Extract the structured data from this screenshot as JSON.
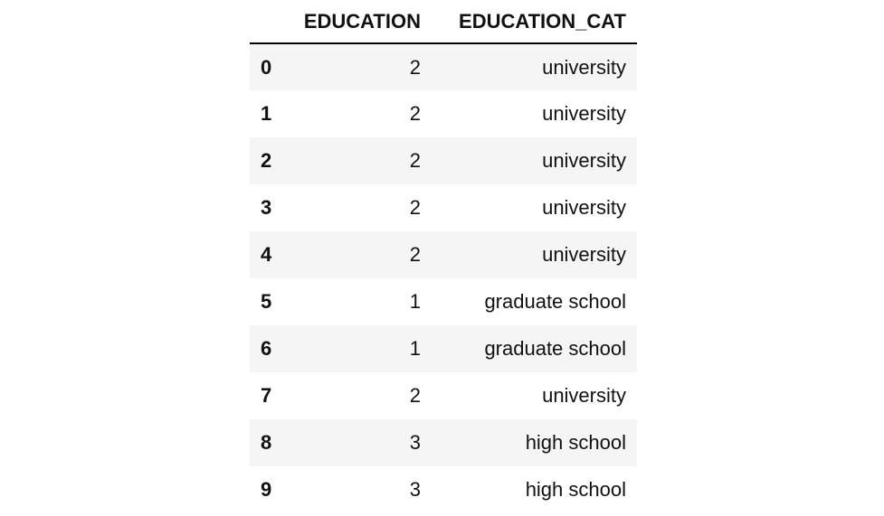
{
  "table": {
    "columns": [
      "EDUCATION",
      "EDUCATION_CAT"
    ],
    "rows": [
      {
        "index": "0",
        "education": "2",
        "education_cat": "university"
      },
      {
        "index": "1",
        "education": "2",
        "education_cat": "university"
      },
      {
        "index": "2",
        "education": "2",
        "education_cat": "university"
      },
      {
        "index": "3",
        "education": "2",
        "education_cat": "university"
      },
      {
        "index": "4",
        "education": "2",
        "education_cat": "university"
      },
      {
        "index": "5",
        "education": "1",
        "education_cat": "graduate school"
      },
      {
        "index": "6",
        "education": "1",
        "education_cat": "graduate school"
      },
      {
        "index": "7",
        "education": "2",
        "education_cat": "university"
      },
      {
        "index": "8",
        "education": "3",
        "education_cat": "high school"
      },
      {
        "index": "9",
        "education": "3",
        "education_cat": "high school"
      }
    ]
  }
}
